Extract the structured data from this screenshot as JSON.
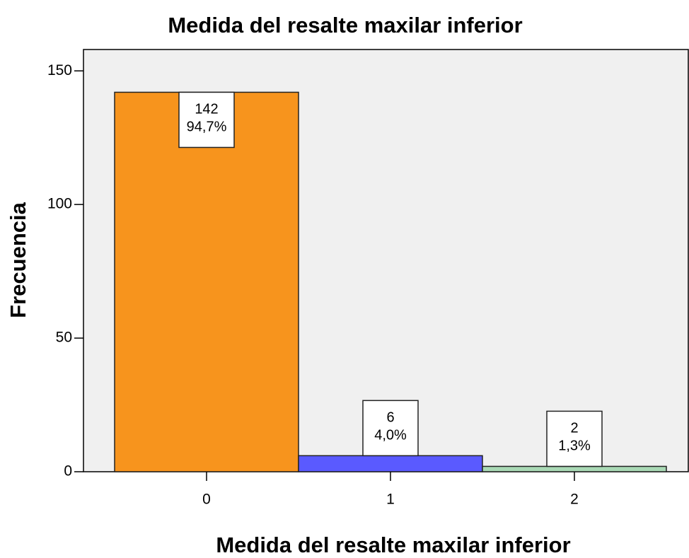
{
  "chart_data": {
    "type": "bar",
    "title": "Medida del resalte maxilar inferior",
    "xlabel": "Medida del resalte maxilar inferior",
    "ylabel": "Frecuencia",
    "categories": [
      "0",
      "1",
      "2"
    ],
    "values": [
      142,
      6,
      2
    ],
    "percents": [
      94.7,
      4.0,
      1.3
    ],
    "percent_labels": [
      "94,7%",
      "4,0%",
      "1,3%"
    ],
    "colors": [
      "#f7941d",
      "#5a5aff",
      "#a9d9b5"
    ],
    "ylim": [
      0,
      158
    ],
    "yticks": [
      0,
      50,
      100,
      150
    ],
    "grid": false
  }
}
